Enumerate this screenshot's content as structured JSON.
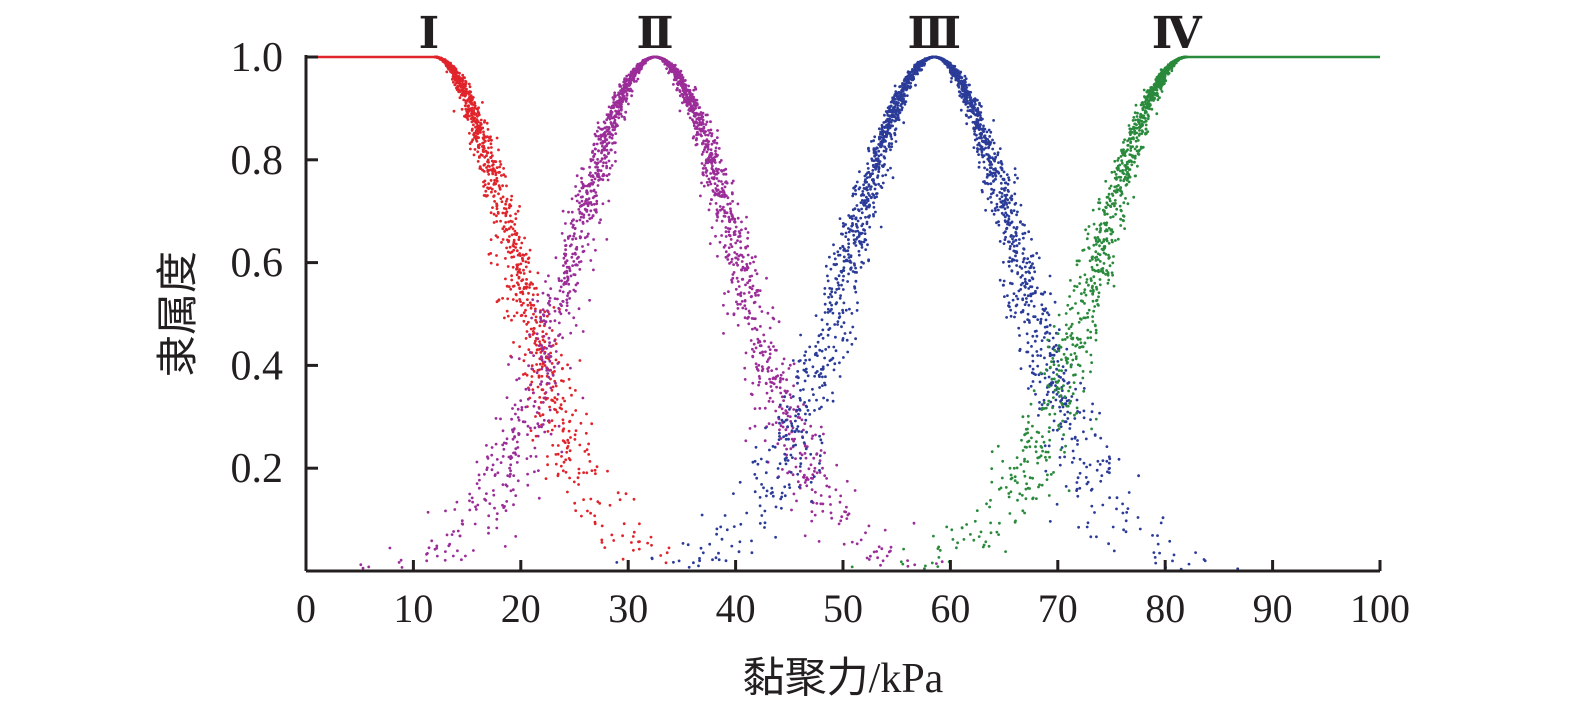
{
  "chart_data": {
    "type": "scatter",
    "title": "",
    "xlabel": "黏聚力/kPa",
    "ylabel": "隶属度",
    "xlim": [
      0,
      100
    ],
    "ylim": [
      0,
      1.0
    ],
    "x_ticks": [
      "0",
      "10",
      "20",
      "30",
      "40",
      "50",
      "60",
      "70",
      "80",
      "90",
      "100"
    ],
    "y_ticks": [
      "0.2",
      "0.4",
      "0.6",
      "0.8",
      "1.0"
    ],
    "grid": false,
    "legend": "none",
    "series": [
      {
        "name": "Ⅰ",
        "color": "#e0242b",
        "shape": "half-cloud-descending",
        "Ex": 12,
        "En": 7.4,
        "He": 0.9,
        "flat_range": [
          0,
          12
        ]
      },
      {
        "name": "Ⅱ",
        "color": "#9b2d99",
        "shape": "cloud",
        "Ex": 32.5,
        "En": 7.8,
        "He": 0.9
      },
      {
        "name": "Ⅲ",
        "color": "#2b3b98",
        "shape": "cloud",
        "Ex": 58.5,
        "En": 7.9,
        "He": 0.9
      },
      {
        "name": "Ⅳ",
        "color": "#2a8a3c",
        "shape": "half-cloud-ascending",
        "Ex": 82,
        "En": 8.3,
        "He": 0.9,
        "flat_range": [
          82,
          100
        ]
      }
    ]
  }
}
